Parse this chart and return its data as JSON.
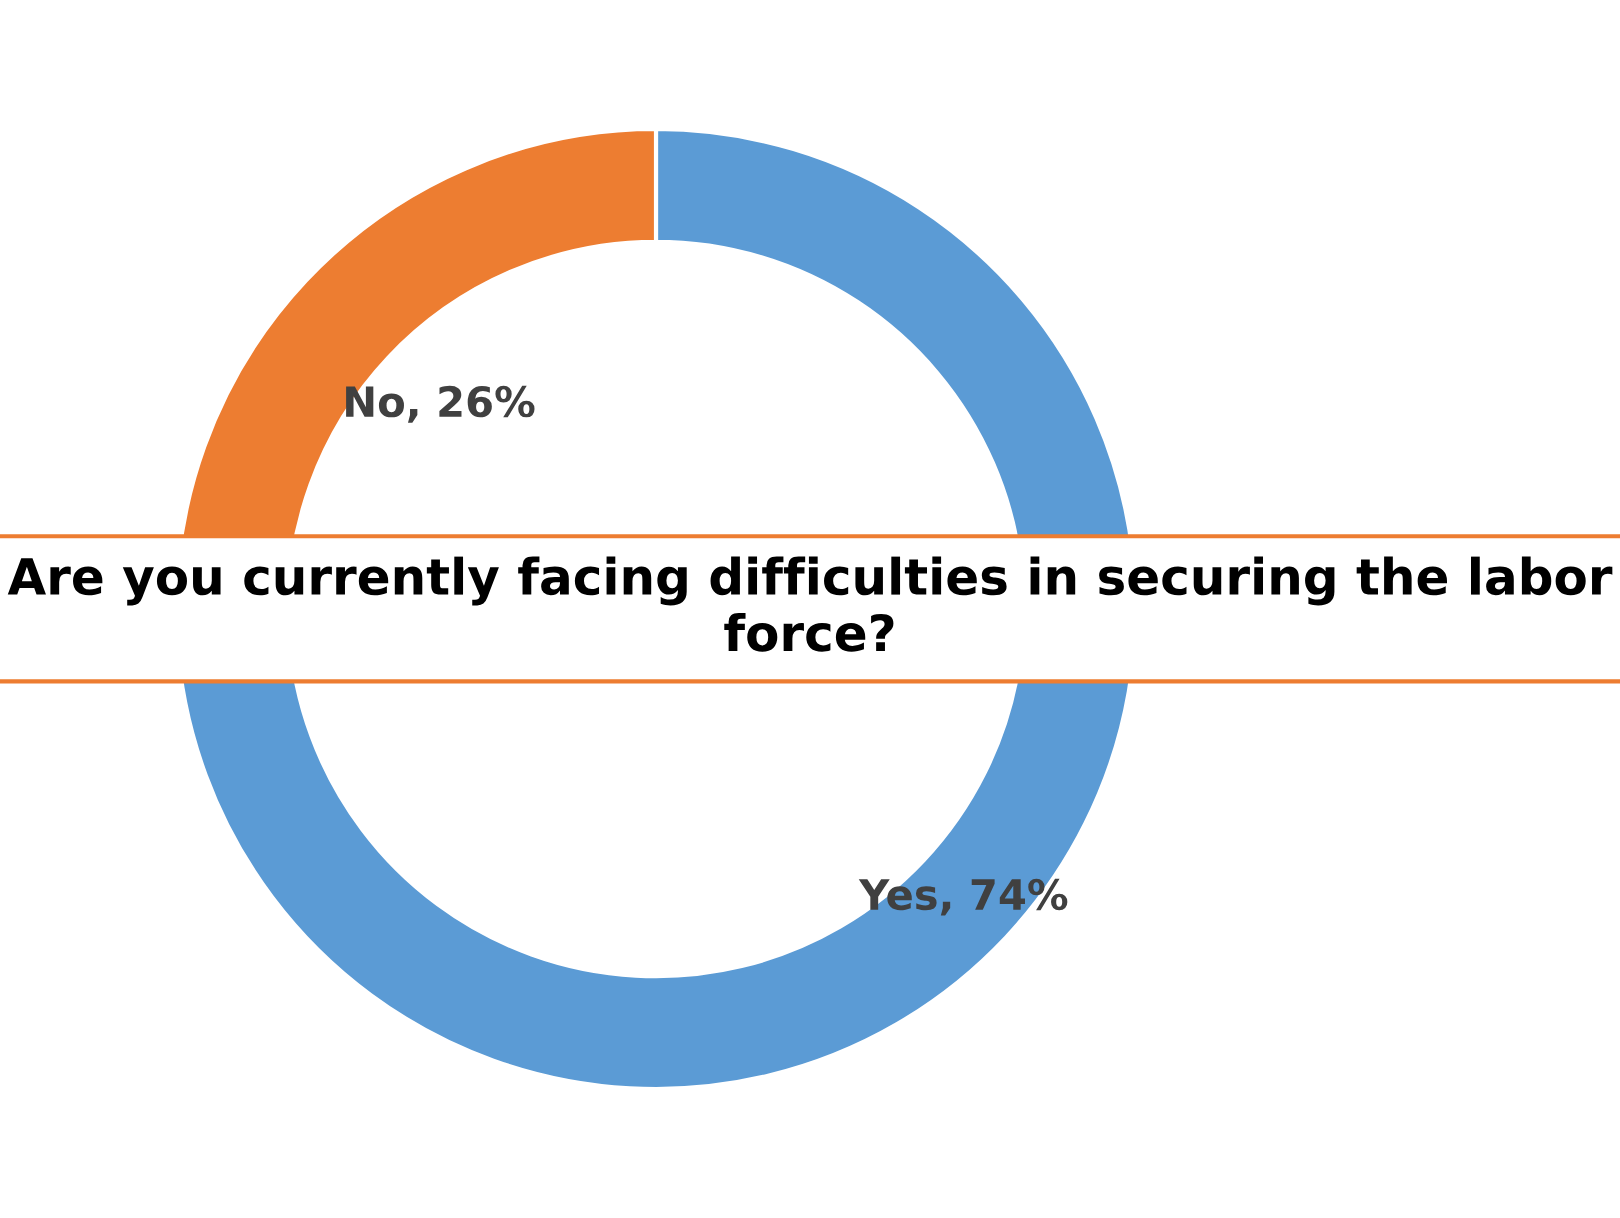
{
  "chart_data": {
    "type": "donut",
    "title": "Are you currently facing difficulties in securing the labor force?",
    "categories": [
      "Yes",
      "No"
    ],
    "values": [
      74,
      26
    ],
    "colors": [
      "#5b9bd5",
      "#ed7d31"
    ],
    "value_labels": [
      "74%",
      "26%"
    ],
    "legend": false
  }
}
